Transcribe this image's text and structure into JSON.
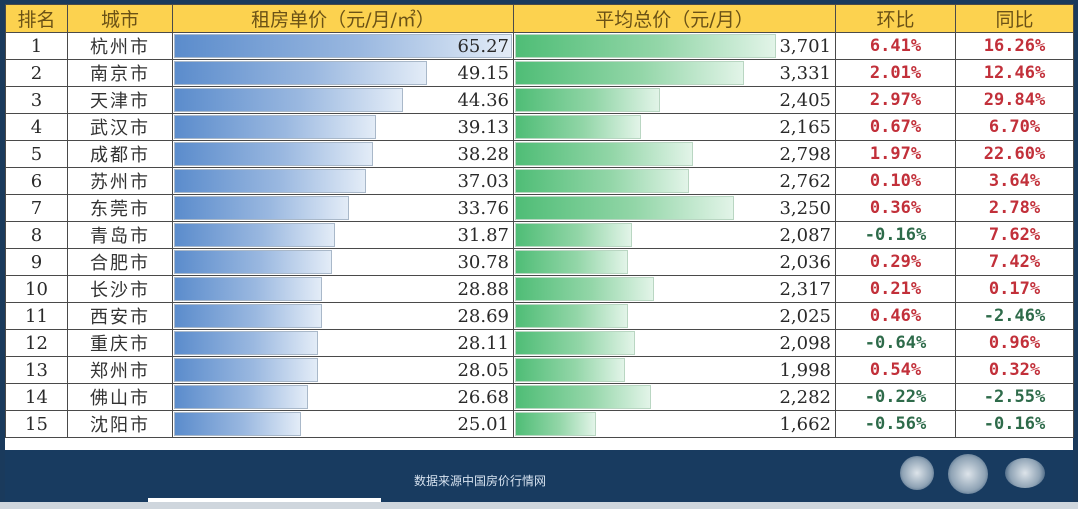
{
  "table": {
    "headers": {
      "rank": "排名",
      "city": "城市",
      "rent_price": "租房单价（元/月/㎡）",
      "total_price": "平均总价（元/月）",
      "mom": "环比",
      "yoy": "同比"
    },
    "rows": [
      {
        "rank": "1",
        "city": "杭州市",
        "rent_price": "65.27",
        "total_price": "3,701",
        "mom": "6.41%",
        "yoy": "16.26%",
        "rent_bar_pct": 100,
        "total_bar_pct": 100
      },
      {
        "rank": "2",
        "city": "南京市",
        "rent_price": "49.15",
        "total_price": "3,331",
        "mom": "2.01%",
        "yoy": "12.46%",
        "rent_bar_pct": 75,
        "total_bar_pct": 90
      },
      {
        "rank": "3",
        "city": "天津市",
        "rent_price": "44.36",
        "total_price": "2,405",
        "mom": "2.97%",
        "yoy": "29.84%",
        "rent_bar_pct": 68,
        "total_bar_pct": 64
      },
      {
        "rank": "4",
        "city": "武汉市",
        "rent_price": "39.13",
        "total_price": "2,165",
        "mom": "0.67%",
        "yoy": "6.70%",
        "rent_bar_pct": 60,
        "total_bar_pct": 58
      },
      {
        "rank": "5",
        "city": "成都市",
        "rent_price": "38.28",
        "total_price": "2,798",
        "mom": "1.97%",
        "yoy": "22.60%",
        "rent_bar_pct": 59,
        "total_bar_pct": 74
      },
      {
        "rank": "6",
        "city": "苏州市",
        "rent_price": "37.03",
        "total_price": "2,762",
        "mom": "0.10%",
        "yoy": "3.64%",
        "rent_bar_pct": 57,
        "total_bar_pct": 73
      },
      {
        "rank": "7",
        "city": "东莞市",
        "rent_price": "33.76",
        "total_price": "3,250",
        "mom": "0.36%",
        "yoy": "2.78%",
        "rent_bar_pct": 52,
        "total_bar_pct": 87
      },
      {
        "rank": "8",
        "city": "青岛市",
        "rent_price": "31.87",
        "total_price": "2,087",
        "mom": "-0.16%",
        "yoy": "7.62%",
        "rent_bar_pct": 48,
        "total_bar_pct": 55
      },
      {
        "rank": "9",
        "city": "合肥市",
        "rent_price": "30.78",
        "total_price": "2,036",
        "mom": "0.29%",
        "yoy": "7.42%",
        "rent_bar_pct": 47,
        "total_bar_pct": 54
      },
      {
        "rank": "10",
        "city": "长沙市",
        "rent_price": "28.88",
        "total_price": "2,317",
        "mom": "0.21%",
        "yoy": "0.17%",
        "rent_bar_pct": 44,
        "total_bar_pct": 62
      },
      {
        "rank": "11",
        "city": "西安市",
        "rent_price": "28.69",
        "total_price": "2,025",
        "mom": "0.46%",
        "yoy": "-2.46%",
        "rent_bar_pct": 44,
        "total_bar_pct": 54
      },
      {
        "rank": "12",
        "city": "重庆市",
        "rent_price": "28.11",
        "total_price": "2,098",
        "mom": "-0.64%",
        "yoy": "0.96%",
        "rent_bar_pct": 43,
        "total_bar_pct": 56
      },
      {
        "rank": "13",
        "city": "郑州市",
        "rent_price": "28.05",
        "total_price": "1,998",
        "mom": "0.54%",
        "yoy": "0.32%",
        "rent_bar_pct": 43,
        "total_bar_pct": 53
      },
      {
        "rank": "14",
        "city": "佛山市",
        "rent_price": "26.68",
        "total_price": "2,282",
        "mom": "-0.22%",
        "yoy": "-2.55%",
        "rent_bar_pct": 40,
        "total_bar_pct": 61
      },
      {
        "rank": "15",
        "city": "沈阳市",
        "rent_price": "25.01",
        "total_price": "1,662",
        "mom": "-0.56%",
        "yoy": "-0.16%",
        "rent_bar_pct": 38,
        "total_bar_pct": 44
      }
    ]
  },
  "footer": {
    "source": "数据来源中国房价行情网"
  },
  "colors": {
    "header_bg": "#fcd24f",
    "header_text": "#6b5216",
    "rent_bar": "#5b8ccc",
    "total_bar": "#4fbd76",
    "positive": "#c2303a",
    "negative": "#2e6b4a",
    "frame": "#183b60"
  },
  "chart_data": {
    "type": "table",
    "title": "",
    "columns": [
      "排名",
      "城市",
      "租房单价（元/月/㎡）",
      "平均总价（元/月）",
      "环比",
      "同比"
    ],
    "categories": [
      "杭州市",
      "南京市",
      "天津市",
      "武汉市",
      "成都市",
      "苏州市",
      "东莞市",
      "青岛市",
      "合肥市",
      "长沙市",
      "西安市",
      "重庆市",
      "郑州市",
      "佛山市",
      "沈阳市"
    ],
    "series": [
      {
        "name": "租房单价（元/月/㎡）",
        "values": [
          65.27,
          49.15,
          44.36,
          39.13,
          38.28,
          37.03,
          33.76,
          31.87,
          30.78,
          28.88,
          28.69,
          28.11,
          28.05,
          26.68,
          25.01
        ],
        "display": "data-bar"
      },
      {
        "name": "平均总价（元/月）",
        "values": [
          3701,
          3331,
          2405,
          2165,
          2798,
          2762,
          3250,
          2087,
          2036,
          2317,
          2025,
          2098,
          1998,
          2282,
          1662
        ],
        "display": "data-bar"
      },
      {
        "name": "环比",
        "values": [
          6.41,
          2.01,
          2.97,
          0.67,
          1.97,
          0.1,
          0.36,
          -0.16,
          0.29,
          0.21,
          0.46,
          -0.64,
          0.54,
          -0.22,
          -0.56
        ],
        "unit": "%"
      },
      {
        "name": "同比",
        "values": [
          16.26,
          12.46,
          29.84,
          6.7,
          22.6,
          3.64,
          2.78,
          7.62,
          7.42,
          0.17,
          -2.46,
          0.96,
          0.32,
          -2.55,
          -0.16
        ],
        "unit": "%"
      }
    ],
    "notes": "Source: 数据来源中国房价行情网"
  }
}
